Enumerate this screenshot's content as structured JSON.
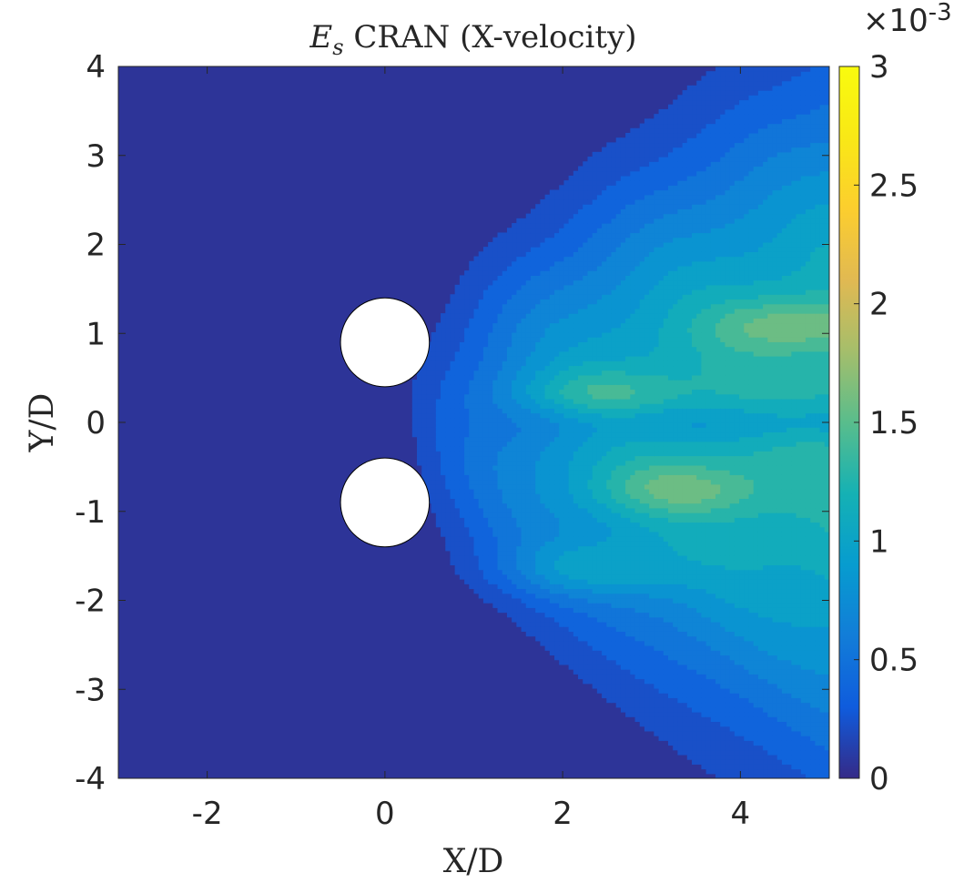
{
  "chart_data": {
    "type": "contour",
    "title_symbol": "E",
    "title_subscript": "s",
    "title_rest": " CRAN (X-velocity)",
    "xlabel": "X/D",
    "ylabel": "Y/D",
    "xlim": [
      -3,
      5
    ],
    "ylim": [
      -4,
      4
    ],
    "xticks": [
      "-2",
      "0",
      "2",
      "4"
    ],
    "yticks": [
      "-4",
      "-3",
      "-2",
      "-1",
      "0",
      "1",
      "2",
      "3",
      "4"
    ],
    "colorbar": {
      "colormap": "parula",
      "range": [
        0,
        0.003
      ],
      "ticks": [
        "0",
        "0.5",
        "1",
        "1.5",
        "2",
        "2.5",
        "3"
      ],
      "exponent_label": "×10",
      "exponent_power": "-3"
    },
    "cylinders": [
      {
        "x": 0,
        "y": 0.9,
        "diameter": 1
      },
      {
        "x": 0,
        "y": -0.9,
        "diameter": 1
      }
    ],
    "contour_levels_e3": [
      0.15,
      0.3,
      0.45,
      0.6,
      0.75,
      0.9,
      1.05,
      1.2,
      1.35,
      1.5,
      1.65
    ],
    "field_extrema": [
      {
        "x": 4.6,
        "y": 1.1,
        "value_e3": 1.75
      },
      {
        "x": 3.3,
        "y": -0.75,
        "value_e3": 1.75
      },
      {
        "x": 2.4,
        "y": 0.3,
        "value_e3": 1.55
      },
      {
        "x": 2.2,
        "y": -1.65,
        "value_e3": 1.5
      }
    ]
  }
}
